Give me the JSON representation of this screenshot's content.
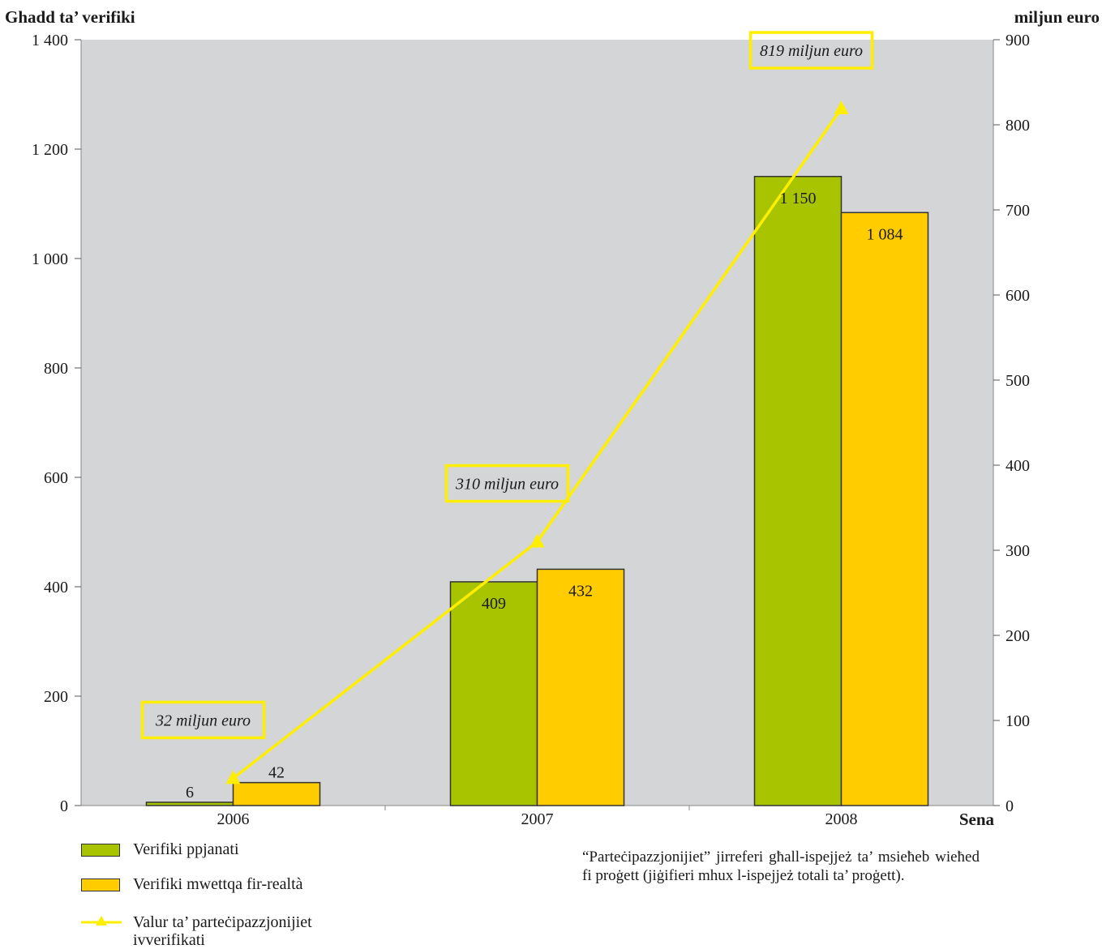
{
  "chart_data": {
    "type": "bar",
    "categories": [
      "2006",
      "2007",
      "2008"
    ],
    "xlabel": "Sena",
    "ylabel_left": "Ghadd ta’ verifiki",
    "ylabel_right": "miljun euro",
    "ylim_left": [
      0,
      1400
    ],
    "ylim_right": [
      0,
      900
    ],
    "yticks_left": [
      "0",
      "200",
      "400",
      "600",
      "800",
      "1 000",
      "1 200",
      "1 400"
    ],
    "yticks_right": [
      "0",
      "100",
      "200",
      "300",
      "400",
      "500",
      "600",
      "700",
      "800",
      "900"
    ],
    "series": [
      {
        "name": "Verifiki ppjanati",
        "axis": "left",
        "values": [
          6,
          409,
          1150
        ],
        "labels": [
          "6",
          "409",
          "1 150"
        ],
        "color": "#a8c400"
      },
      {
        "name": "Verifiki mwettqa fir-realtà",
        "axis": "left",
        "values": [
          42,
          432,
          1084
        ],
        "labels": [
          "42",
          "432",
          "1 084"
        ],
        "color": "#ffcc00"
      },
      {
        "name": "Valur ta’ parteċipazzjonijiet ivverifikati",
        "axis": "right",
        "type": "line",
        "values": [
          32,
          310,
          819
        ],
        "labels": [
          "32 miljun euro",
          "310 miljun euro",
          "819 miljun euro"
        ],
        "color": "#ffee00"
      }
    ],
    "grid": false,
    "background": "#d4d5d7",
    "legend_position": "bottom-left"
  },
  "legend": {
    "items": [
      "Verifiki ppjanati",
      "Verifiki mwettqa fir-realtà",
      "Valur ta’ parteċipazzjonijiet ivverifikati"
    ]
  },
  "note": "“Parteċipazzjonijiet” jirreferi għall-ispejjeż ta’ msieħeb wieħed fi proġett (jiġifieri mhux l-ispejjeż totali ta’ proġett)."
}
